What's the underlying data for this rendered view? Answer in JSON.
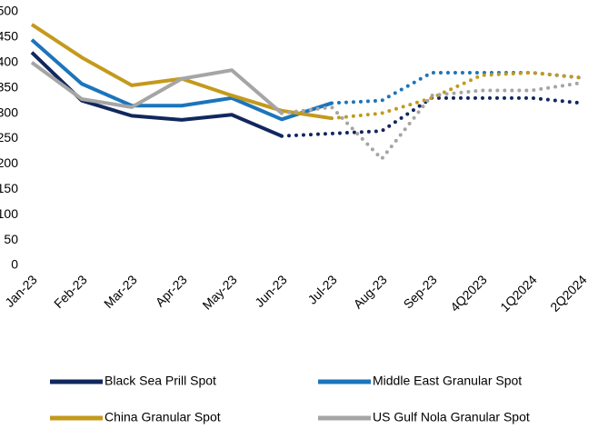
{
  "chart_data": {
    "type": "line",
    "categories": [
      "Jan-23",
      "Feb-23",
      "Mar-23",
      "Apr-23",
      "May-23",
      "Jun-23",
      "Jul-23",
      "Aug-23",
      "Sep-23",
      "4Q2023",
      "1Q2024",
      "2Q2024"
    ],
    "series": [
      {
        "name": "Black Sea Prill Spot",
        "color": "#12275e",
        "dotted_from": 5,
        "values": [
          420,
          325,
          295,
          287,
          297,
          255,
          260,
          265,
          330,
          330,
          330,
          320
        ]
      },
      {
        "name": "Middle East Granular Spot",
        "color": "#1b75bb",
        "dotted_from": 6,
        "values": [
          445,
          358,
          315,
          315,
          330,
          288,
          320,
          325,
          380,
          380,
          380,
          370
        ]
      },
      {
        "name": "China Granular Spot",
        "color": "#c49a1c",
        "dotted_from": 6,
        "values": [
          475,
          410,
          355,
          368,
          335,
          305,
          290,
          300,
          330,
          375,
          380,
          370
        ]
      },
      {
        "name": "US Gulf Nola Granular Spot",
        "color": "#a5a5a5",
        "dotted_from": 5,
        "values": [
          400,
          328,
          312,
          368,
          385,
          300,
          312,
          210,
          335,
          345,
          345,
          360
        ]
      }
    ],
    "ylim": [
      0,
      500
    ],
    "yticks": [
      0,
      50,
      100,
      150,
      200,
      250,
      300,
      350,
      400,
      450,
      500
    ],
    "grid": false
  }
}
